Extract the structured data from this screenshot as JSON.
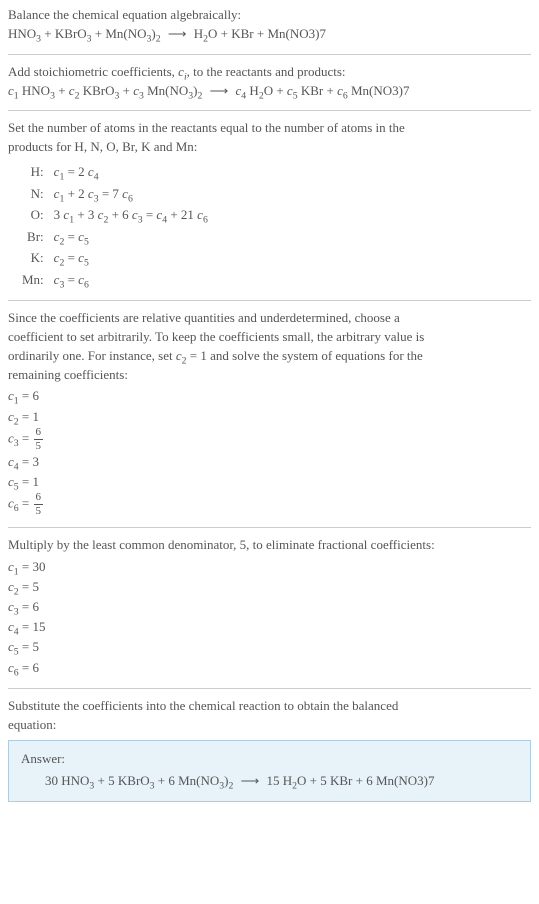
{
  "intro": {
    "line1": "Balance the chemical equation algebraically:",
    "reaction_lhs": [
      "HNO",
      "3",
      " + KBrO",
      "3",
      " + Mn(NO",
      "3",
      ")",
      "2"
    ],
    "reaction_rhs": [
      "H",
      "2",
      "O + KBr + Mn(NO3)7"
    ]
  },
  "stoich": {
    "line1_a": "Add stoichiometric coefficients, ",
    "line1_ci": "c",
    "line1_ci_sub": "i",
    "line1_b": ", to the reactants and products:",
    "eq_lhs_parts": [
      "c",
      "1",
      " HNO",
      "3",
      " + ",
      "c",
      "2",
      " KBrO",
      "3",
      " + ",
      "c",
      "3",
      " Mn(NO",
      "3",
      ")",
      "2"
    ],
    "eq_rhs_parts": [
      "c",
      "4",
      " H",
      "2",
      "O + ",
      "c",
      "5",
      " KBr + ",
      "c",
      "6",
      " Mn(NO3)7"
    ]
  },
  "atoms": {
    "intro1": "Set the number of atoms in the reactants equal to the number of atoms in the",
    "intro2": "products for H, N, O, Br, K and Mn:",
    "rows": [
      {
        "el": "H:",
        "eq": "c₁ = 2 c₄",
        "parts": [
          "c",
          "1",
          " = 2 ",
          "c",
          "4"
        ]
      },
      {
        "el": "N:",
        "eq": "c₁ + 2 c₃ = 7 c₆",
        "parts": [
          "c",
          "1",
          " + 2 ",
          "c",
          "3",
          " = 7 ",
          "c",
          "6"
        ]
      },
      {
        "el": "O:",
        "eq": "3 c₁ + 3 c₂ + 6 c₃ = c₄ + 21 c₆",
        "parts": [
          "3 ",
          "c",
          "1",
          " + 3 ",
          "c",
          "2",
          " + 6 ",
          "c",
          "3",
          " = ",
          "c",
          "4",
          " + 21 ",
          "c",
          "6"
        ]
      },
      {
        "el": "Br:",
        "eq": "c₂ = c₅",
        "parts": [
          "c",
          "2",
          " = ",
          "c",
          "5"
        ]
      },
      {
        "el": "K:",
        "eq": "c₂ = c₅",
        "parts": [
          "c",
          "2",
          " = ",
          "c",
          "5"
        ]
      },
      {
        "el": "Mn:",
        "eq": "c₃ = c₆",
        "parts": [
          "c",
          "3",
          " = ",
          "c",
          "6"
        ]
      }
    ]
  },
  "underdet": {
    "l1": "Since the coefficients are relative quantities and underdetermined, choose a",
    "l2": "coefficient to set arbitrarily. To keep the coefficients small, the arbitrary value is",
    "l3_a": "ordinarily one. For instance, set ",
    "l3_c": "c",
    "l3_sub": "2",
    "l3_b": " = 1 and solve the system of equations for the",
    "l4": "remaining coefficients:",
    "coefs": [
      {
        "v": "c",
        "s": "1",
        "rhs": " = 6",
        "frac": null
      },
      {
        "v": "c",
        "s": "2",
        "rhs": " = 1",
        "frac": null
      },
      {
        "v": "c",
        "s": "3",
        "rhs": " = ",
        "frac": {
          "n": "6",
          "d": "5"
        }
      },
      {
        "v": "c",
        "s": "4",
        "rhs": " = 3",
        "frac": null
      },
      {
        "v": "c",
        "s": "5",
        "rhs": " = 1",
        "frac": null
      },
      {
        "v": "c",
        "s": "6",
        "rhs": " = ",
        "frac": {
          "n": "6",
          "d": "5"
        }
      }
    ]
  },
  "multiply": {
    "l1": "Multiply by the least common denominator, 5, to eliminate fractional coefficients:",
    "coefs": [
      {
        "v": "c",
        "s": "1",
        "rhs": " = 30"
      },
      {
        "v": "c",
        "s": "2",
        "rhs": " = 5"
      },
      {
        "v": "c",
        "s": "3",
        "rhs": " = 6"
      },
      {
        "v": "c",
        "s": "4",
        "rhs": " = 15"
      },
      {
        "v": "c",
        "s": "5",
        "rhs": " = 5"
      },
      {
        "v": "c",
        "s": "6",
        "rhs": " = 6"
      }
    ]
  },
  "final": {
    "l1": "Substitute the coefficients into the chemical reaction to obtain the balanced",
    "l2": "equation:",
    "answer_label": "Answer:",
    "answer_lhs": "30 HNO",
    "answer_rhs_parts": [
      " + 5 KBrO",
      "3",
      " + 6 Mn(NO",
      "3",
      ")",
      "2",
      "  ⟶  15 H",
      "2",
      "O + 5 KBr + 6 Mn(NO3)7"
    ]
  },
  "arrow": "⟶"
}
